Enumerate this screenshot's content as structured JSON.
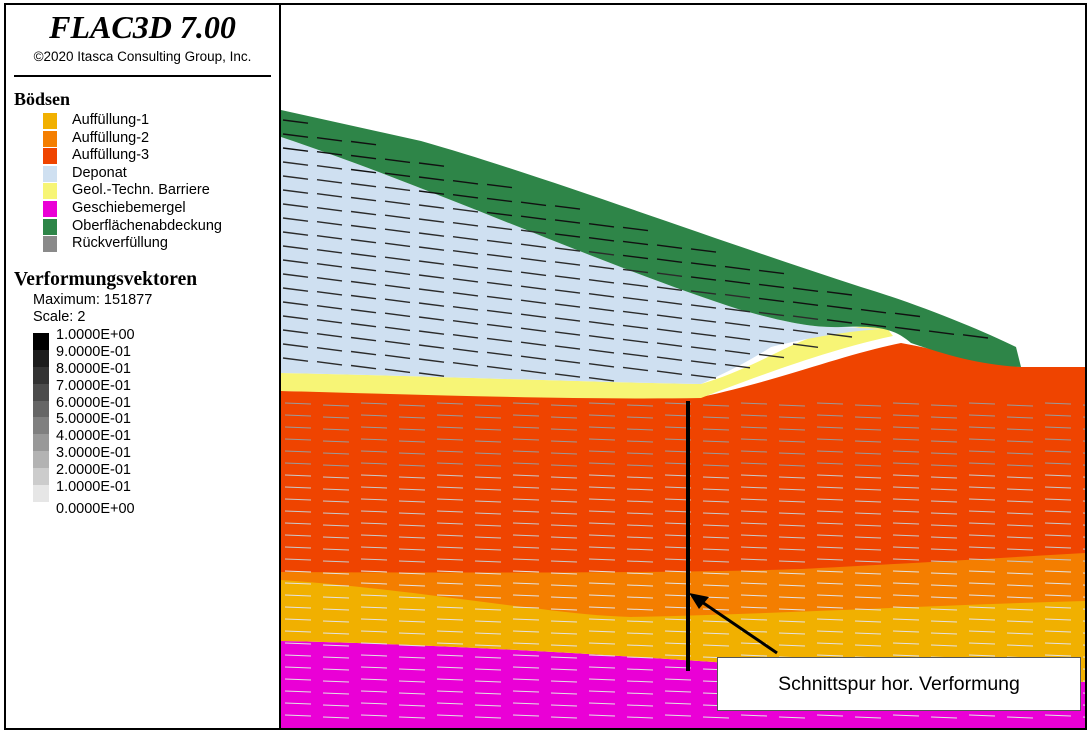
{
  "header": {
    "app_title": "FLAC3D 7.00",
    "copyright": "©2020 Itasca Consulting Group, Inc."
  },
  "materials": {
    "title": "Bödsen",
    "items": [
      {
        "label": "Auffüllung-1",
        "color": "#f1b000"
      },
      {
        "label": "Auffüllung-2",
        "color": "#f47e00"
      },
      {
        "label": "Auffüllung-3",
        "color": "#ef4400"
      },
      {
        "label": "Deponat",
        "color": "#cfe0f1"
      },
      {
        "label": "Geol.-Techn. Barriere",
        "color": "#f7f576"
      },
      {
        "label": "Geschiebemergel",
        "color": "#ea00d6"
      },
      {
        "label": "Oberflächenabdeckung",
        "color": "#2e8548"
      },
      {
        "label": "Rückverfüllung",
        "color": "#8a8a8a"
      }
    ]
  },
  "vectors": {
    "title": "Verformungsvektoren",
    "maximum": "Maximum: 151877",
    "scale": "Scale: 2",
    "scale_entries": [
      {
        "label": "1.0000E+00",
        "color": "#000000"
      },
      {
        "label": "9.0000E-01",
        "color": "#1c1c1c"
      },
      {
        "label": "8.0000E-01",
        "color": "#333333"
      },
      {
        "label": "7.0000E-01",
        "color": "#4c4c4c"
      },
      {
        "label": "6.0000E-01",
        "color": "#666666"
      },
      {
        "label": "5.0000E-01",
        "color": "#808080"
      },
      {
        "label": "4.0000E-01",
        "color": "#999999"
      },
      {
        "label": "3.0000E-01",
        "color": "#b3b3b3"
      },
      {
        "label": "2.0000E-01",
        "color": "#cccccc"
      },
      {
        "label": "1.0000E-01",
        "color": "#e6e6e6"
      },
      {
        "label": "0.0000E+00",
        "color": "#ffffff"
      }
    ]
  },
  "annotation": {
    "label": "Schnittspur hor. Verformung"
  }
}
